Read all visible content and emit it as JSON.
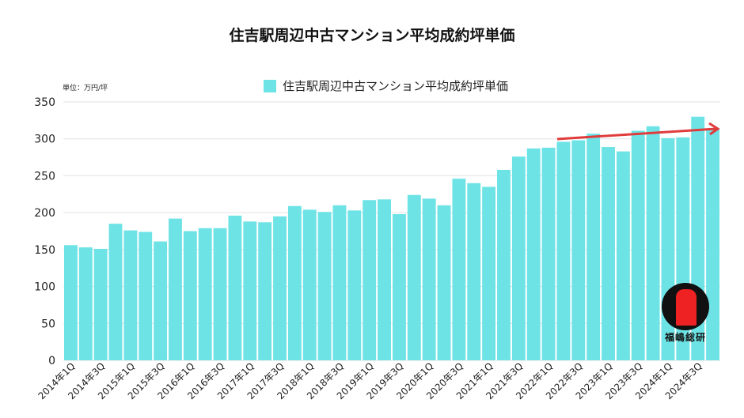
{
  "chart_data": {
    "type": "bar",
    "title": "住吉駅周辺中古マンション平均成約坪単価",
    "unit_label": "単位：万円/坪",
    "legend": [
      "住吉駅周辺中古マンション平均成約坪単価"
    ],
    "legend_placement": "top-center",
    "ylim": [
      0,
      350
    ],
    "yticks": [
      0,
      50,
      100,
      150,
      200,
      250,
      300,
      350
    ],
    "grid": true,
    "color": "#6de3e6",
    "trend_arrow_color": "#e03c3c",
    "xtick_labels": [
      "2014年1Q",
      "2014年3Q",
      "2015年1Q",
      "2015年3Q",
      "2016年1Q",
      "2016年3Q",
      "2017年1Q",
      "2017年3Q",
      "2018年1Q",
      "2018年3Q",
      "2019年1Q",
      "2019年3Q",
      "2020年1Q",
      "2020年3Q",
      "2021年1Q",
      "2021年3Q",
      "2022年1Q",
      "2022年3Q",
      "2023年1Q",
      "2023年3Q",
      "2024年1Q",
      "2024年3Q"
    ],
    "values": [
      156,
      153,
      151,
      185,
      176,
      174,
      161,
      192,
      175,
      179,
      179,
      196,
      188,
      187,
      195,
      209,
      204,
      201,
      210,
      203,
      217,
      218,
      198,
      224,
      219,
      210,
      246,
      240,
      235,
      258,
      276,
      287,
      288,
      296,
      298,
      307,
      289,
      283,
      311,
      317,
      301,
      302,
      330,
      314
    ]
  },
  "logo": {
    "text": "福嶋総研"
  }
}
